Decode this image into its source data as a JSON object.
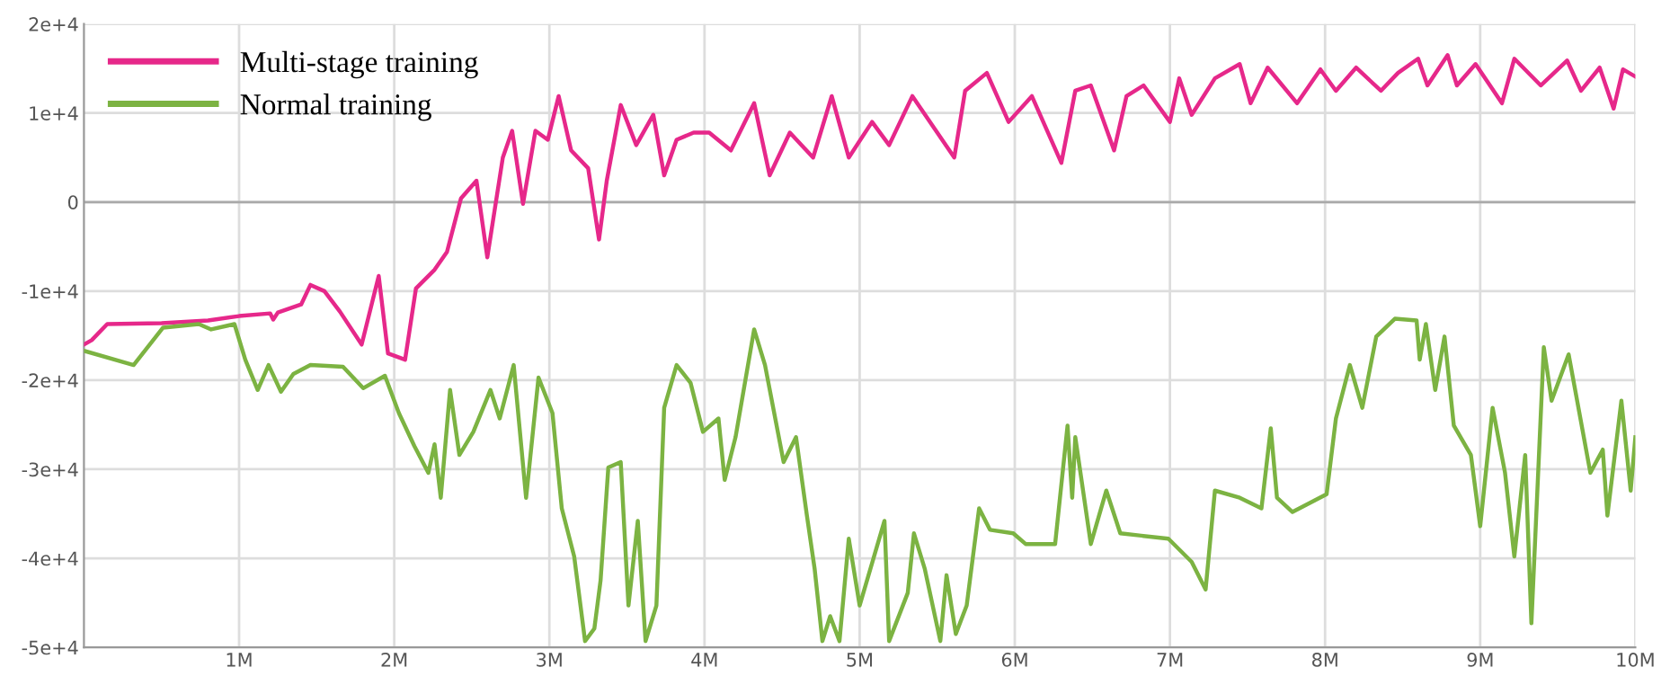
{
  "chart_data": {
    "type": "line",
    "xlim": [
      0,
      10000000
    ],
    "ylim": [
      -50000,
      20000
    ],
    "xticks": [
      {
        "value": 1000000,
        "label": "1M"
      },
      {
        "value": 2000000,
        "label": "2M"
      },
      {
        "value": 3000000,
        "label": "3M"
      },
      {
        "value": 4000000,
        "label": "4M"
      },
      {
        "value": 5000000,
        "label": "5M"
      },
      {
        "value": 6000000,
        "label": "6M"
      },
      {
        "value": 7000000,
        "label": "7M"
      },
      {
        "value": 8000000,
        "label": "8M"
      },
      {
        "value": 9000000,
        "label": "9M"
      },
      {
        "value": 10000000,
        "label": "10M"
      }
    ],
    "yticks": [
      {
        "value": -50000,
        "label": "-5e+4"
      },
      {
        "value": -40000,
        "label": "-4e+4"
      },
      {
        "value": -30000,
        "label": "-3e+4"
      },
      {
        "value": -20000,
        "label": "-2e+4"
      },
      {
        "value": -10000,
        "label": "-1e+4"
      },
      0,
      {
        "value": 10000,
        "label": "1e+4"
      },
      {
        "value": 20000,
        "label": "2e+4"
      }
    ],
    "grid": true,
    "legend": "top left",
    "marker": "none",
    "line_style": "solid",
    "series": [
      {
        "name": "Multi-stage training",
        "color": "#e6288a",
        "x": [
          0,
          50000.0,
          150000.0,
          500000.0,
          800000.0,
          1000000.0,
          1200000.0,
          1220000.0,
          1250000.0,
          1400000.0,
          1460000.0,
          1550000.0,
          1650000.0,
          1790000.0,
          1900000.0,
          1960000.0,
          2070000.0,
          2140000.0,
          2260000.0,
          2340000.0,
          2430000.0,
          2530000.0,
          2600000.0,
          2700000.0,
          2760000.0,
          2830000.0,
          2910000.0,
          2990000.0,
          3060000.0,
          3140000.0,
          3250000.0,
          3320000.0,
          3370000.0,
          3460000.0,
          3560000.0,
          3670000.0,
          3740000.0,
          3820000.0,
          3930000.0,
          4030000.0,
          4170000.0,
          4320000.0,
          4420000.0,
          4550000.0,
          4700000.0,
          4820000.0,
          4930000.0,
          5080000.0,
          5190000.0,
          5340000.0,
          5610000.0,
          5680000.0,
          5820000.0,
          5960000.0,
          6110000.0,
          6300000.0,
          6390000.0,
          6490000.0,
          6640000.0,
          6720000.0,
          6830000.0,
          7000000.0,
          7060000.0,
          7140000.0,
          7290000.0,
          7450000.0,
          7520000.0,
          7630000.0,
          7820000.0,
          7970000.0,
          8070000.0,
          8200000.0,
          8360000.0,
          8470000.0,
          8600000.0,
          8660000.0,
          8790000.0,
          8850000.0,
          8970000.0,
          9140000.0,
          9220000.0,
          9390000.0,
          9560000.0,
          9650000.0,
          9770000.0,
          9860000.0,
          9920000.0,
          10000000.0
        ],
        "values": [
          -16000.0,
          -15500.0,
          -13700.0,
          -13600.0,
          -13300.0,
          -12800.0,
          -12500.0,
          -13200.0,
          -12400.0,
          -11500.0,
          -9300.0,
          -10000.0,
          -12300.0,
          -16000.0,
          -8300.0,
          -17000.0,
          -17700.0,
          -9700.0,
          -7600.0,
          -5600.0,
          400.0,
          2400.0,
          -6200.0,
          5000.0,
          8000.0,
          -200.0,
          8000.0,
          7000.0,
          11900.0,
          5800.0,
          3800.0,
          -4200.0,
          2400.0,
          10900.0,
          6400.0,
          9800.0,
          3000.0,
          7000.0,
          7800.0,
          7800.0,
          5800.0,
          11100.0,
          3000.0,
          7800.0,
          5000.0,
          11900.0,
          5000.0,
          9000.0,
          6400.0,
          11900.0,
          5000.0,
          12500.0,
          14500.0,
          9000.0,
          11900.0,
          4400.0,
          12500.0,
          13100.0,
          5800.0,
          11900.0,
          13100.0,
          9000.0,
          13900.0,
          9800.0,
          13900.0,
          15500.0,
          11100.0,
          15100.0,
          11100.0,
          14900.0,
          12500.0,
          15100.0,
          12500.0,
          14500.0,
          16100.0,
          13100.0,
          16500.0,
          13100.0,
          15500.0,
          11100.0,
          16100.0,
          13100.0,
          15900.0,
          12500.0,
          15100.0,
          10500.0,
          14900.0,
          14100.0
        ]
      },
      {
        "name": "Normal training",
        "color": "#7cb342",
        "x": [
          0,
          280000.0,
          320000.0,
          510000.0,
          740000.0,
          820000.0,
          970000.0,
          1040000.0,
          1120000.0,
          1190000.0,
          1270000.0,
          1350000.0,
          1460000.0,
          1670000.0,
          1800000.0,
          1940000.0,
          2030000.0,
          2130000.0,
          2220000.0,
          2260000.0,
          2300000.0,
          2360000.0,
          2420000.0,
          2510000.0,
          2620000.0,
          2680000.0,
          2770000.0,
          2850000.0,
          2930000.0,
          3020000.0,
          3080000.0,
          3160000.0,
          3230000.0,
          3290000.0,
          3330000.0,
          3380000.0,
          3460000.0,
          3510000.0,
          3570000.0,
          3620000.0,
          3690000.0,
          3740000.0,
          3820000.0,
          3910000.0,
          3990000.0,
          4090000.0,
          4130000.0,
          4200000.0,
          4320000.0,
          4390000.0,
          4510000.0,
          4590000.0,
          4660000.0,
          4710000.0,
          4760000.0,
          4810000.0,
          4870000.0,
          4930000.0,
          5000000.0,
          5160000.0,
          5190000.0,
          5310000.0,
          5350000.0,
          5420000.0,
          5520000.0,
          5560000.0,
          5620000.0,
          5690000.0,
          5770000.0,
          5840000.0,
          5990000.0,
          6070000.0,
          6260000.0,
          6340000.0,
          6370000.0,
          6390000.0,
          6490000.0,
          6590000.0,
          6680000.0,
          6990000.0,
          7140000.0,
          7230000.0,
          7290000.0,
          7450000.0,
          7590000.0,
          7650000.0,
          7690000.0,
          7790000.0,
          8010000.0,
          8070000.0,
          8160000.0,
          8240000.0,
          8330000.0,
          8450000.0,
          8590000.0,
          8610000.0,
          8650000.0,
          8710000.0,
          8770000.0,
          8830000.0,
          8940000.0,
          9000000.0,
          9080000.0,
          9160000.0,
          9220000.0,
          9290000.0,
          9330000.0,
          9410000.0,
          9460000.0,
          9570000.0,
          9710000.0,
          9790000.0,
          9820000.0,
          9910000.0,
          9970000.0,
          10000000.0
        ],
        "values": [
          -16700.0,
          -18100.0,
          -18300.0,
          -14100.0,
          -13700.0,
          -14300.0,
          -13700.0,
          -17700.0,
          -21100.0,
          -18300.0,
          -21300.0,
          -19300.0,
          -18300.0,
          -18500.0,
          -20900.0,
          -19500.0,
          -23700.0,
          -27400.0,
          -30400.0,
          -27200.0,
          -33200.0,
          -21100.0,
          -28400.0,
          -25800.0,
          -21100.0,
          -24300.0,
          -18300.0,
          -33200.0,
          -19700.0,
          -23700.0,
          -34400.0,
          -39800.0,
          -49300.0,
          -47900.0,
          -42500.0,
          -29800.0,
          -29200.0,
          -45300.0,
          -35800.0,
          -49300.0,
          -45300.0,
          -23100.0,
          -18300.0,
          -20300.0,
          -25800.0,
          -24300.0,
          -31200.0,
          -26400.0,
          -14300.0,
          -18300.0,
          -29200.0,
          -26400.0,
          -35200.0,
          -41200.0,
          -49300.0,
          -46500.0,
          -49300.0,
          -37800.0,
          -45300.0,
          -35800.0,
          -49300.0,
          -43900.0,
          -37200.0,
          -41200.0,
          -49300.0,
          -41900.0,
          -48500.0,
          -45300.0,
          -34400.0,
          -36800.0,
          -37200.0,
          -38400.0,
          -38400.0,
          -25100.0,
          -33200.0,
          -26400.0,
          -38400.0,
          -32400.0,
          -37200.0,
          -37800.0,
          -40400.0,
          -43500.0,
          -32400.0,
          -33200.0,
          -34400.0,
          -25400.0,
          -33200.0,
          -34800.0,
          -32800.0,
          -24300.0,
          -18300.0,
          -23100.0,
          -15100.0,
          -13100.0,
          -13300.0,
          -17700.0,
          -13700.0,
          -21100.0,
          -15100.0,
          -25100.0,
          -28400.0,
          -36400.0,
          -23100.0,
          -30400.0,
          -39800.0,
          -28400.0,
          -47300.0,
          -16300.0,
          -22300.0,
          -17100.0,
          -30400.0,
          -27800.0,
          -35200.0,
          -22300.0,
          -32400.0,
          -26400.0
        ]
      }
    ]
  }
}
